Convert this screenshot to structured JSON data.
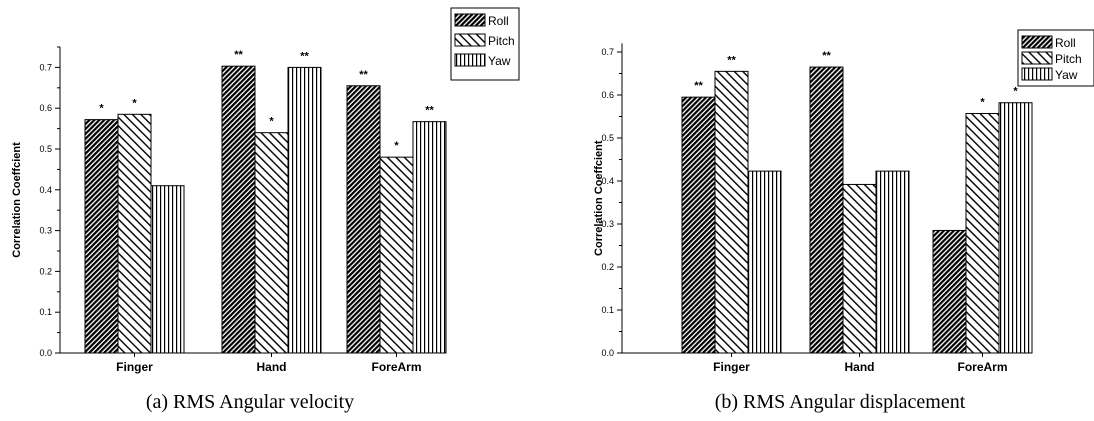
{
  "patterns": {
    "Roll": "diagonal-dense",
    "Pitch": "diagonal-reverse",
    "Yaw": "vertical"
  },
  "chart_data": [
    {
      "type": "bar",
      "caption": "(a) RMS Angular velocity",
      "ylabel": "Correlation Coeffcient",
      "xlabel": "",
      "ylim": [
        0,
        0.75
      ],
      "yticks": [
        "0.0",
        "0.1",
        "0.2",
        "0.3",
        "0.4",
        "0.5",
        "0.6",
        "0.7"
      ],
      "categories": [
        "Finger",
        "Hand",
        "ForeArm"
      ],
      "legend_position": "top-right",
      "series": [
        {
          "name": "Roll",
          "values": [
            0.572,
            0.703,
            0.655
          ],
          "significance": [
            "*",
            "**",
            "**"
          ]
        },
        {
          "name": "Pitch",
          "values": [
            0.585,
            0.54,
            0.48
          ],
          "significance": [
            "*",
            "*",
            "*"
          ]
        },
        {
          "name": "Yaw",
          "values": [
            0.41,
            0.7,
            0.567
          ],
          "significance": [
            "",
            "**",
            "**"
          ]
        }
      ]
    },
    {
      "type": "bar",
      "caption": "(b) RMS Angular displacement",
      "ylabel": "Correlation Coeffcient",
      "xlabel": "",
      "ylim": [
        0,
        0.72
      ],
      "yticks": [
        "0.0",
        "0.1",
        "0.2",
        "0.3",
        "0.4",
        "0.5",
        "0.6",
        "0.7"
      ],
      "categories": [
        "Finger",
        "Hand",
        "ForeArm"
      ],
      "legend_position": "top-right",
      "series": [
        {
          "name": "Roll",
          "values": [
            0.595,
            0.665,
            0.285
          ],
          "significance": [
            "**",
            "**",
            ""
          ]
        },
        {
          "name": "Pitch",
          "values": [
            0.655,
            0.392,
            0.557
          ],
          "significance": [
            "**",
            "",
            "*"
          ]
        },
        {
          "name": "Yaw",
          "values": [
            0.423,
            0.423,
            0.582
          ],
          "significance": [
            "",
            "",
            "*"
          ]
        }
      ]
    }
  ]
}
